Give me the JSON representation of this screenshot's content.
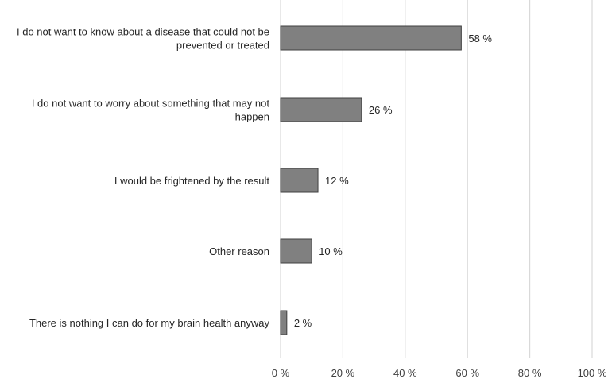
{
  "chart_data": {
    "type": "bar",
    "orientation": "horizontal",
    "title": "",
    "xlabel": "",
    "ylabel": "",
    "categories": [
      [
        "I do not want to know about a disease that could not be",
        "prevented or treated"
      ],
      [
        "I do not want to worry about something that may not",
        "happen"
      ],
      [
        "I would be frightened by the result"
      ],
      [
        "Other reason"
      ],
      [
        "There is nothing I can do for my brain health anyway"
      ]
    ],
    "values": [
      58,
      26,
      12,
      10,
      2
    ],
    "value_labels": [
      "58 %",
      "26 %",
      "12 %",
      "10 %",
      "2 %"
    ],
    "xlim": [
      0,
      100
    ],
    "x_ticks": [
      0,
      20,
      40,
      60,
      80,
      100
    ],
    "x_tick_labels": [
      "0 %",
      "20 %",
      "40 %",
      "60 %",
      "80 %",
      "100 %"
    ],
    "grid": "vertical",
    "legend": "none",
    "bar_color": "#808080",
    "bar_edge_color": "#3f3f3f",
    "grid_color": "#d9d9d9",
    "text_color": "#262626"
  }
}
